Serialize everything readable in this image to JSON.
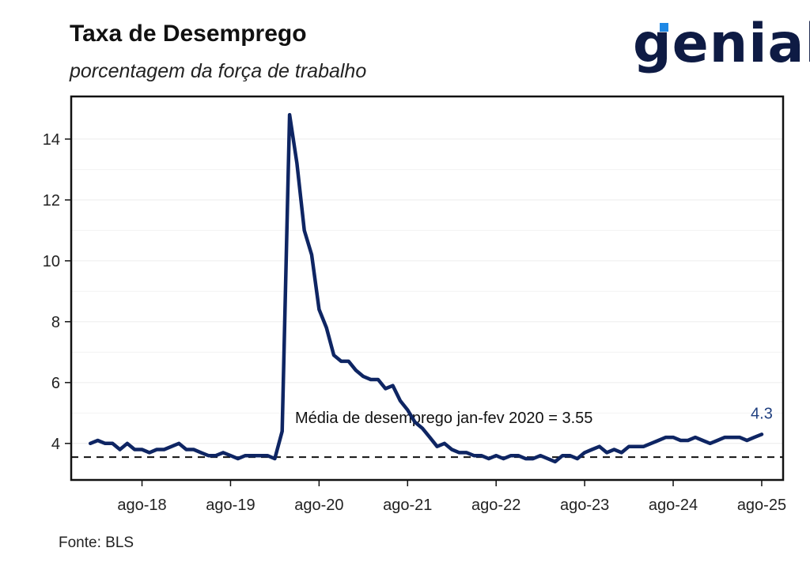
{
  "header": {
    "title": "Taxa de Desemprego",
    "subtitle": "porcentagem da força de trabalho",
    "brand": "genial"
  },
  "footer": {
    "source": "Fonte: BLS"
  },
  "colors": {
    "line": "#0e2563",
    "reference_line": "#111111",
    "last_label": "#1f3f7f",
    "logo": "#0e1b44",
    "logo_accent": "#1e88e5"
  },
  "chart_data": {
    "type": "line",
    "title": "Taxa de Desemprego",
    "subtitle": "porcentagem da força de trabalho",
    "xlabel": "",
    "ylabel": "",
    "ylim": [
      2.8,
      15.4
    ],
    "yticks": [
      4,
      6,
      8,
      10,
      12,
      14
    ],
    "grid": true,
    "x_start": "2018-01",
    "x_end": "2025-08",
    "xticks": [
      {
        "date": "2018-08",
        "label": "ago-18"
      },
      {
        "date": "2019-08",
        "label": "ago-19"
      },
      {
        "date": "2020-08",
        "label": "ago-20"
      },
      {
        "date": "2021-08",
        "label": "ago-21"
      },
      {
        "date": "2022-08",
        "label": "ago-22"
      },
      {
        "date": "2023-08",
        "label": "ago-23"
      },
      {
        "date": "2024-08",
        "label": "ago-24"
      },
      {
        "date": "2025-08",
        "label": "ago-25"
      }
    ],
    "series": [
      {
        "values": [
          4.0,
          4.1,
          4.0,
          4.0,
          3.8,
          4.0,
          3.8,
          3.8,
          3.7,
          3.8,
          3.8,
          3.9,
          4.0,
          3.8,
          3.8,
          3.7,
          3.6,
          3.6,
          3.7,
          3.6,
          3.5,
          3.6,
          3.6,
          3.6,
          3.6,
          3.5,
          4.4,
          14.8,
          13.2,
          11.0,
          10.2,
          8.4,
          7.8,
          6.9,
          6.7,
          6.7,
          6.4,
          6.2,
          6.1,
          6.1,
          5.8,
          5.9,
          5.4,
          5.1,
          4.7,
          4.5,
          4.2,
          3.9,
          4.0,
          3.8,
          3.7,
          3.7,
          3.6,
          3.6,
          3.5,
          3.6,
          3.5,
          3.6,
          3.6,
          3.5,
          3.5,
          3.6,
          3.5,
          3.4,
          3.6,
          3.6,
          3.5,
          3.7,
          3.8,
          3.9,
          3.7,
          3.8,
          3.7,
          3.9,
          3.9,
          3.9,
          4.0,
          4.1,
          4.2,
          4.2,
          4.1,
          4.1,
          4.2,
          4.1,
          4.0,
          4.1,
          4.2,
          4.2,
          4.2,
          4.1,
          4.2,
          4.3
        ]
      }
    ],
    "reference_line": {
      "value": 3.55,
      "label": "Média de desemprego jan-fev 2020 =  3.55"
    },
    "last_value_label": "4.3"
  }
}
